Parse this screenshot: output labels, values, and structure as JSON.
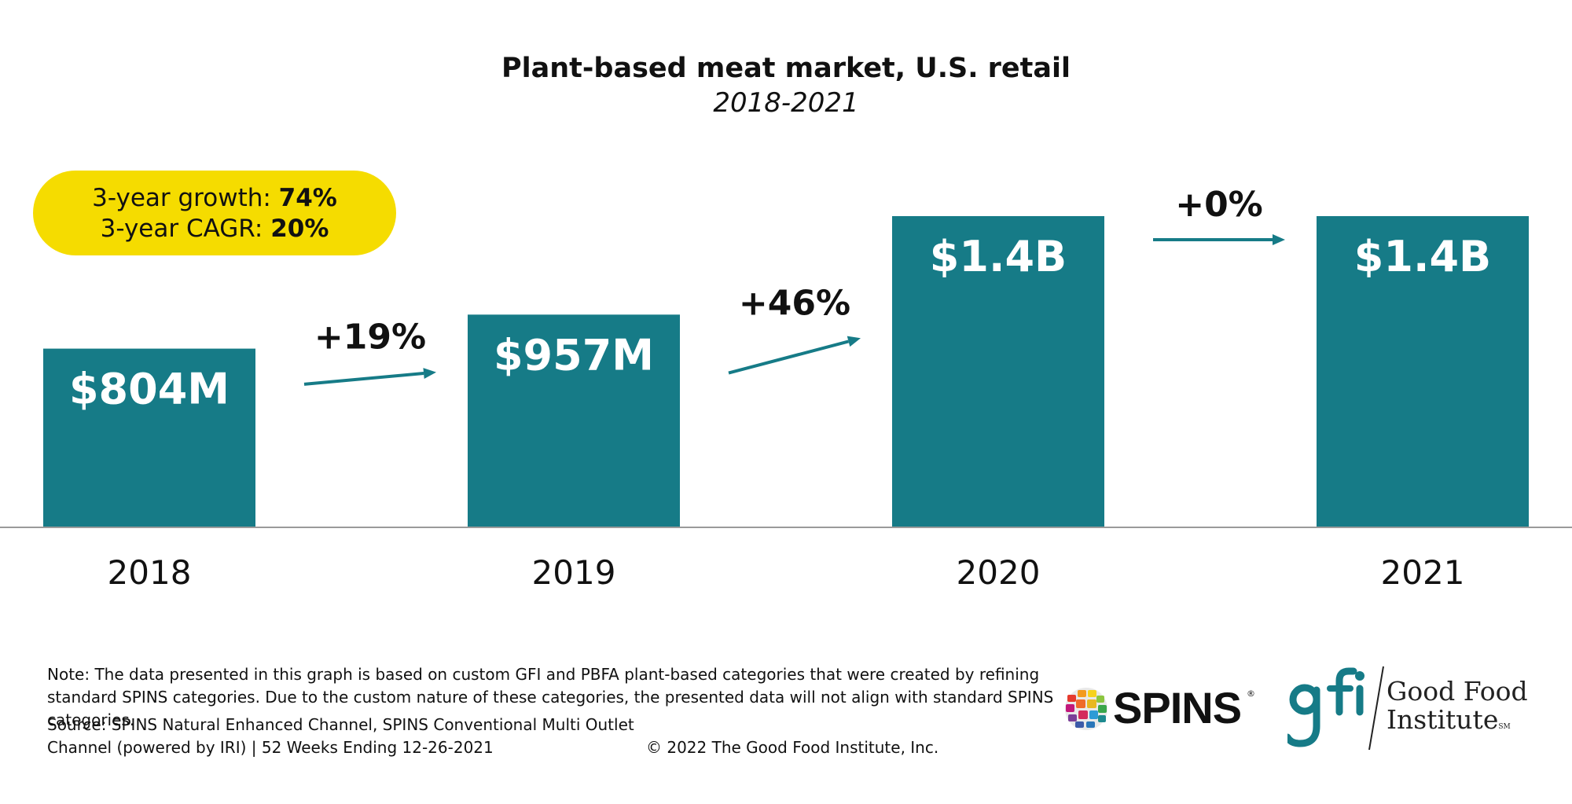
{
  "chart_data": {
    "type": "bar",
    "title": "Plant-based meat market, U.S. retail",
    "subtitle": "2018-2021",
    "categories": [
      "2018",
      "2019",
      "2020",
      "2021"
    ],
    "values_musd": [
      804,
      957,
      1400,
      1400
    ],
    "bar_labels": [
      "$804M",
      "$957M",
      "$1.4B",
      "$1.4B"
    ],
    "changes": [
      {
        "label": "+19%",
        "value": 19
      },
      {
        "label": "+46%",
        "value": 46
      },
      {
        "label": "+0%",
        "value": 0
      }
    ],
    "xlabel": "",
    "ylabel": "",
    "ylim": [
      0,
      1400
    ],
    "grid": false,
    "bar_color": "#167b87",
    "arrow_color": "#167b87"
  },
  "badge": {
    "growth_label": "3-year growth: ",
    "growth_value": "74%",
    "cagr_label": "3-year CAGR: ",
    "cagr_value": "20%",
    "color": "#f5dc00"
  },
  "footer": {
    "note": "Note: The data presented in this graph is based on custom GFI and PBFA plant-based categories that were created by refining standard SPINS categories. Due to the custom nature of these categories, the presented data will not align with standard SPINS categories.",
    "source": "Source: SPINS Natural Enhanced Channel, SPINS Conventional Multi Outlet Channel (powered by IRI) | 52 Weeks Ending 12-26-2021",
    "copyright": "© 2022 The Good Food Institute, Inc."
  },
  "logos": {
    "spins": {
      "name": "SPINS",
      "mark": "®"
    },
    "gfi": {
      "mark": "gfi",
      "name_line1": "Good Food",
      "name_line2": "Institute",
      "mark_tm": "SM",
      "color": "#167b87"
    }
  }
}
